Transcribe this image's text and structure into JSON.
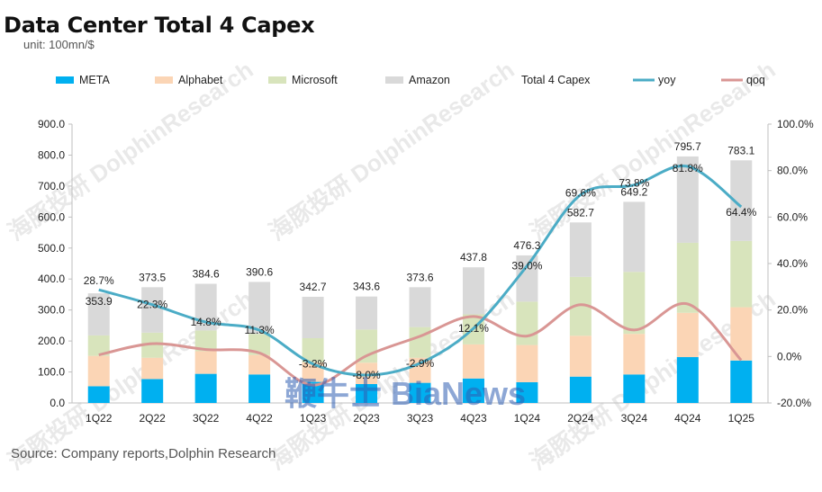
{
  "header": {
    "title": "Data Center Total 4 Capex",
    "subtitle": "unit: 100mn/$"
  },
  "footer": {
    "source": "Source: Company reports,Dolphin Research"
  },
  "watermark": {
    "text": "海豚投研 DolphinResearch",
    "logo_text": "鞭牛士 BiaNews"
  },
  "chart_data": {
    "type": "bar",
    "stacked": true,
    "title": "Data Center Total 4 Capex",
    "subtitle": "unit: 100mn/$",
    "categories": [
      "1Q22",
      "2Q22",
      "3Q22",
      "4Q22",
      "1Q23",
      "2Q23",
      "3Q23",
      "4Q23",
      "1Q24",
      "2Q24",
      "3Q24",
      "4Q24",
      "1Q25"
    ],
    "series": [
      {
        "name": "META",
        "color": "#00b0f0",
        "values": [
          54,
          77,
          94,
          92,
          68,
          61,
          65,
          79,
          67,
          85,
          92,
          148,
          137
        ]
      },
      {
        "name": "Alphabet",
        "color": "#fbd5b5",
        "values": [
          98,
          69,
          73,
          63,
          63,
          69,
          81,
          110,
          120,
          132,
          131,
          143,
          172
        ]
      },
      {
        "name": "Microsoft",
        "color": "#d8e4bc",
        "values": [
          66,
          81,
          67,
          68,
          78,
          107,
          99,
          97,
          140,
          190,
          200,
          226,
          214
        ]
      },
      {
        "name": "Amazon",
        "color": "#d9d9d9",
        "values": [
          135.9,
          146.5,
          150.6,
          167.6,
          133.7,
          106.6,
          128.6,
          151.8,
          149.3,
          175.7,
          226.2,
          278.7,
          260.1
        ]
      }
    ],
    "totals": {
      "name": "Total 4 Capex",
      "values": [
        353.9,
        373.5,
        384.6,
        390.6,
        342.7,
        343.6,
        373.6,
        437.8,
        476.3,
        582.7,
        649.2,
        795.7,
        783.1
      ],
      "labels": [
        "353.9",
        "373.5",
        "384.6",
        "390.6",
        "342.7",
        "343.6",
        "373.6",
        "437.8",
        "476.3",
        "582.7",
        "649.2",
        "795.7",
        "783.1"
      ]
    },
    "lines": [
      {
        "name": "yoy",
        "axis": "right",
        "color": "#4bacc6",
        "values": [
          28.7,
          22.3,
          14.8,
          11.3,
          -3.2,
          -8.0,
          -2.9,
          12.1,
          39.0,
          69.6,
          73.8,
          81.8,
          64.4
        ],
        "labels": [
          "28.7%",
          "22.3%",
          "14.8%",
          "11.3%",
          "-3.2%",
          "-8.0%",
          "-2.9%",
          "12.1%",
          "39.0%",
          "69.6%",
          "73.8%",
          "81.8%",
          "64.4%"
        ]
      },
      {
        "name": "qoq",
        "axis": "right",
        "color": "#d99694",
        "values": [
          0.7,
          5.5,
          3.0,
          1.5,
          -12.3,
          0.3,
          8.7,
          17.2,
          8.8,
          22.3,
          11.4,
          22.6,
          -1.6
        ]
      }
    ],
    "legend": [
      "META",
      "Alphabet",
      "Microsoft",
      "Amazon",
      "Total 4 Capex",
      "yoy",
      "qoq"
    ],
    "legend_position": "top",
    "ylim": [
      0,
      900
    ],
    "yticks": [
      "0.0",
      "100.0",
      "200.0",
      "300.0",
      "400.0",
      "500.0",
      "600.0",
      "700.0",
      "800.0",
      "900.0"
    ],
    "ylim_right": [
      -20,
      100
    ],
    "yticks_right": [
      "-20.0%",
      "0.0%",
      "20.0%",
      "40.0%",
      "60.0%",
      "80.0%",
      "100.0%"
    ],
    "grid": false
  }
}
